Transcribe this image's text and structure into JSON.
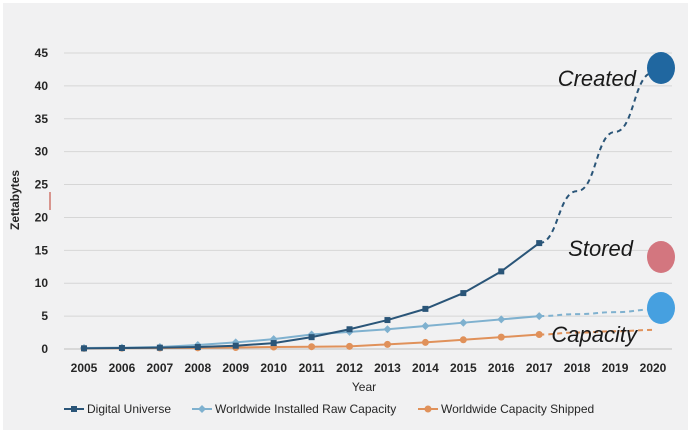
{
  "chart_data": {
    "type": "line",
    "title": "",
    "xlabel": "Year",
    "ylabel": "Zettabytes",
    "x": [
      "2005",
      "2006",
      "2007",
      "2008",
      "2009",
      "2010",
      "2011",
      "2012",
      "2013",
      "2014",
      "2015",
      "2016",
      "2017",
      "2018",
      "2019",
      "2020"
    ],
    "ylim": [
      0,
      45
    ],
    "yticks": [
      0,
      5,
      10,
      15,
      20,
      25,
      30,
      35,
      40,
      45
    ],
    "grid": true,
    "legend_position": "bottom",
    "series": [
      {
        "name": "Digital Universe",
        "color": "#2a5578",
        "marker": "square",
        "values": [
          0.1,
          0.15,
          0.2,
          0.3,
          0.5,
          0.9,
          1.8,
          3.0,
          4.4,
          6.1,
          8.5,
          11.8,
          16.1,
          null,
          null,
          null
        ],
        "projection": [
          [
            2017,
            16.1
          ],
          [
            2018,
            24
          ],
          [
            2019,
            33
          ],
          [
            2020,
            42
          ]
        ]
      },
      {
        "name": "Worldwide Installed Raw Capacity",
        "color": "#7fb1cf",
        "marker": "diamond",
        "values": [
          0.15,
          0.2,
          0.3,
          0.6,
          1.0,
          1.5,
          2.2,
          2.6,
          3.0,
          3.5,
          4.0,
          4.5,
          5.0,
          null,
          null,
          null
        ],
        "projection": [
          [
            2017,
            5.0
          ],
          [
            2018,
            5.3
          ],
          [
            2019,
            5.6
          ],
          [
            2020,
            6.0
          ]
        ]
      },
      {
        "name": "Worldwide Capacity Shipped",
        "color": "#e0915a",
        "marker": "circle",
        "values": [
          0.1,
          0.12,
          0.15,
          0.18,
          0.22,
          0.3,
          0.35,
          0.4,
          0.7,
          1.0,
          1.4,
          1.8,
          2.2,
          null,
          null,
          null
        ],
        "projection": [
          [
            2017,
            2.2
          ],
          [
            2018,
            2.5
          ],
          [
            2019,
            2.7
          ],
          [
            2020,
            2.9
          ]
        ]
      }
    ],
    "annotations": [
      {
        "text": "Created",
        "color": "#2067a0",
        "value": 43
      },
      {
        "text": "Stored",
        "color": "#d3767f",
        "value": 14
      },
      {
        "text": "Capacity",
        "color": "#46a0e0",
        "value": 6.2
      }
    ],
    "colors": {
      "background": "#f1f1f2",
      "grid": "#d6d6d6",
      "text": "#262626"
    }
  }
}
